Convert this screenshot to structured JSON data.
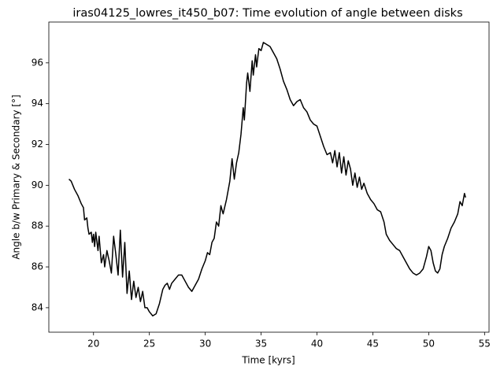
{
  "chart_data": {
    "type": "line",
    "title": "iras04125_lowres_it450_b07: Time evolution of angle between disks",
    "xlabel": "Time [kyrs]",
    "ylabel": "Angle b/w Primary & Secondary [°]",
    "color": "#000000",
    "x": [
      17.8,
      18.0,
      18.3,
      18.6,
      18.9,
      19.1,
      19.2,
      19.4,
      19.5,
      19.6,
      19.8,
      19.9,
      20.0,
      20.1,
      20.2,
      20.4,
      20.5,
      20.7,
      20.9,
      21.0,
      21.2,
      21.4,
      21.6,
      21.8,
      22.0,
      22.2,
      22.4,
      22.6,
      22.8,
      23.0,
      23.2,
      23.4,
      23.6,
      23.8,
      24.0,
      24.2,
      24.4,
      24.6,
      24.8,
      25.0,
      25.3,
      25.6,
      25.9,
      26.2,
      26.4,
      26.6,
      26.8,
      27.0,
      27.3,
      27.6,
      27.9,
      28.2,
      28.5,
      28.8,
      29.1,
      29.4,
      29.7,
      30.0,
      30.2,
      30.4,
      30.6,
      30.8,
      31.0,
      31.2,
      31.4,
      31.6,
      31.9,
      32.2,
      32.4,
      32.6,
      32.8,
      33.0,
      33.2,
      33.4,
      33.5,
      33.7,
      33.8,
      34.0,
      34.2,
      34.3,
      34.5,
      34.6,
      34.8,
      35.0,
      35.2,
      35.5,
      35.8,
      36.1,
      36.4,
      36.7,
      37.0,
      37.3,
      37.6,
      37.9,
      38.2,
      38.5,
      38.8,
      39.1,
      39.4,
      39.7,
      40.0,
      40.3,
      40.6,
      40.9,
      41.2,
      41.4,
      41.6,
      41.8,
      42.0,
      42.2,
      42.4,
      42.6,
      42.8,
      43.0,
      43.2,
      43.4,
      43.6,
      43.8,
      44.0,
      44.2,
      44.5,
      44.8,
      45.1,
      45.4,
      45.7,
      46.0,
      46.2,
      46.5,
      46.8,
      47.1,
      47.4,
      47.7,
      48.0,
      48.3,
      48.6,
      48.9,
      49.2,
      49.5,
      49.8,
      50.0,
      50.2,
      50.4,
      50.6,
      50.8,
      51.0,
      51.2,
      51.4,
      51.7,
      52.0,
      52.3,
      52.6,
      52.8,
      53.0,
      53.2,
      53.3
    ],
    "values": [
      90.3,
      90.2,
      89.8,
      89.5,
      89.1,
      88.9,
      88.3,
      88.4,
      87.9,
      87.6,
      87.7,
      87.2,
      87.6,
      87.0,
      87.7,
      86.8,
      87.5,
      86.2,
      86.6,
      86.0,
      86.8,
      86.3,
      85.7,
      87.5,
      86.6,
      85.6,
      87.8,
      85.5,
      87.2,
      84.7,
      85.8,
      84.4,
      85.3,
      84.5,
      85.0,
      84.3,
      84.8,
      84.0,
      84.0,
      83.8,
      83.6,
      83.7,
      84.2,
      84.9,
      85.1,
      85.2,
      84.9,
      85.2,
      85.4,
      85.6,
      85.6,
      85.3,
      85.0,
      84.8,
      85.1,
      85.4,
      85.9,
      86.3,
      86.7,
      86.6,
      87.2,
      87.4,
      88.2,
      88.0,
      89.0,
      88.6,
      89.3,
      90.2,
      91.3,
      90.3,
      91.1,
      91.6,
      92.5,
      93.8,
      93.2,
      95.0,
      95.5,
      94.6,
      96.1,
      95.4,
      96.4,
      95.8,
      96.7,
      96.6,
      97.0,
      96.9,
      96.8,
      96.5,
      96.2,
      95.7,
      95.1,
      94.7,
      94.2,
      93.9,
      94.1,
      94.2,
      93.8,
      93.6,
      93.2,
      93.0,
      92.9,
      92.4,
      91.9,
      91.5,
      91.6,
      91.1,
      91.7,
      90.9,
      91.6,
      90.6,
      91.4,
      90.5,
      91.2,
      90.8,
      90.0,
      90.6,
      89.9,
      90.4,
      89.8,
      90.1,
      89.6,
      89.3,
      89.1,
      88.8,
      88.7,
      88.2,
      87.6,
      87.3,
      87.1,
      86.9,
      86.8,
      86.5,
      86.2,
      85.9,
      85.7,
      85.6,
      85.7,
      85.9,
      86.5,
      87.0,
      86.8,
      86.2,
      85.8,
      85.7,
      85.9,
      86.6,
      87.0,
      87.4,
      87.9,
      88.2,
      88.6,
      89.2,
      89.0,
      89.6,
      89.4
    ],
    "xlim": [
      16.0,
      55.4
    ],
    "ylim": [
      82.8,
      98.0
    ],
    "xticks": [
      20,
      25,
      30,
      35,
      40,
      45,
      50,
      55
    ],
    "yticks": [
      84,
      86,
      88,
      90,
      92,
      94,
      96
    ]
  }
}
